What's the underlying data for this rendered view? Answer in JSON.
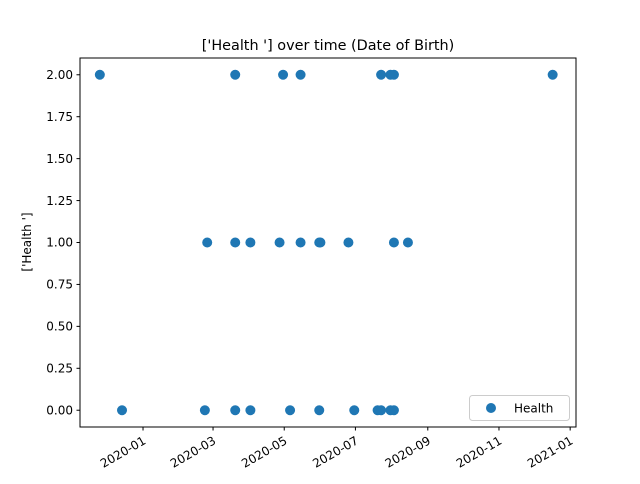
{
  "chart_data": {
    "type": "scatter",
    "title": "['Health '] over time (Date of Birth)",
    "xlabel": "",
    "ylabel": "['Health ']",
    "x_axis_type": "date",
    "xlim": [
      "2019-11-08",
      "2021-01-06"
    ],
    "ylim": [
      -0.1,
      2.1
    ],
    "x_ticks": [
      "2020-01",
      "2020-03",
      "2020-05",
      "2020-07",
      "2020-09",
      "2020-11",
      "2021-01"
    ],
    "y_ticks": [
      "0.00",
      "0.25",
      "0.50",
      "0.75",
      "1.00",
      "1.25",
      "1.50",
      "1.75",
      "2.00"
    ],
    "grid": false,
    "legend_position": "lower right",
    "color": "#1f77b4",
    "series": [
      {
        "name": "Health",
        "points": [
          {
            "x": "2019-11-25",
            "y": 2
          },
          {
            "x": "2020-03-20",
            "y": 2
          },
          {
            "x": "2020-04-30",
            "y": 2
          },
          {
            "x": "2020-05-15",
            "y": 2
          },
          {
            "x": "2020-07-23",
            "y": 2
          },
          {
            "x": "2020-07-31",
            "y": 2
          },
          {
            "x": "2020-08-03",
            "y": 2
          },
          {
            "x": "2020-12-17",
            "y": 2
          },
          {
            "x": "2020-02-25",
            "y": 1
          },
          {
            "x": "2020-03-20",
            "y": 1
          },
          {
            "x": "2020-04-02",
            "y": 1
          },
          {
            "x": "2020-04-27",
            "y": 1
          },
          {
            "x": "2020-05-15",
            "y": 1
          },
          {
            "x": "2020-05-31",
            "y": 1
          },
          {
            "x": "2020-06-01",
            "y": 1
          },
          {
            "x": "2020-06-25",
            "y": 1
          },
          {
            "x": "2020-08-03",
            "y": 1
          },
          {
            "x": "2020-08-15",
            "y": 1
          },
          {
            "x": "2019-12-14",
            "y": 0
          },
          {
            "x": "2020-02-23",
            "y": 0
          },
          {
            "x": "2020-03-20",
            "y": 0
          },
          {
            "x": "2020-04-02",
            "y": 0
          },
          {
            "x": "2020-05-06",
            "y": 0
          },
          {
            "x": "2020-05-31",
            "y": 0
          },
          {
            "x": "2020-06-30",
            "y": 0
          },
          {
            "x": "2020-07-20",
            "y": 0
          },
          {
            "x": "2020-07-23",
            "y": 0
          },
          {
            "x": "2020-07-31",
            "y": 0
          },
          {
            "x": "2020-08-03",
            "y": 0
          }
        ]
      }
    ]
  }
}
